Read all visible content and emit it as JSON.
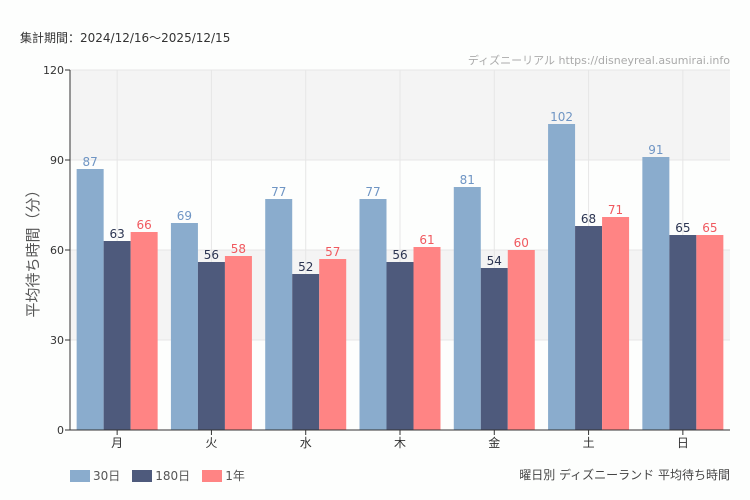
{
  "period_label": "集計期間：2024/12/16〜2025/12/15",
  "credit": "ディズニーリアル https://disneyreal.asumirai.info",
  "footer_title": "曜日別 ディズニーランド 平均待ち時間",
  "chart_data": {
    "type": "bar",
    "ylabel": "平均待ち時間（分）",
    "ylim": [
      0,
      120
    ],
    "yticks": [
      0,
      30,
      60,
      90,
      120
    ],
    "grid": true,
    "legend_placement": "bottom-left",
    "categories": [
      "月",
      "火",
      "水",
      "木",
      "金",
      "土",
      "日"
    ],
    "series": [
      {
        "name": "30日",
        "color": "#8aaccd",
        "label_color": "#6f95c4",
        "values": [
          87,
          69,
          77,
          77,
          81,
          102,
          91
        ]
      },
      {
        "name": "180日",
        "color": "#4e5a7c",
        "label_color": "#2c3552",
        "values": [
          63,
          56,
          52,
          56,
          54,
          68,
          65
        ]
      },
      {
        "name": "1年",
        "color": "#ff8484",
        "label_color": "#f0595f",
        "values": [
          66,
          58,
          57,
          61,
          60,
          71,
          65
        ]
      }
    ]
  }
}
